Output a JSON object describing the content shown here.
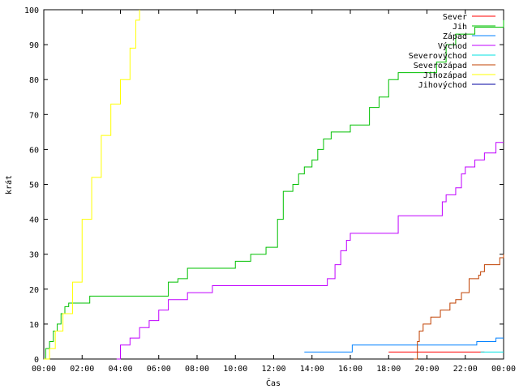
{
  "chart_data": {
    "type": "line",
    "xlabel": "Čas",
    "ylabel": "krát",
    "xlim": [
      0,
      24
    ],
    "ylim": [
      0,
      100
    ],
    "xticks": [
      0,
      2,
      4,
      6,
      8,
      10,
      12,
      14,
      16,
      18,
      20,
      22,
      24
    ],
    "xtick_labels": [
      "00:00",
      "02:00",
      "04:00",
      "06:00",
      "08:00",
      "10:00",
      "12:00",
      "14:00",
      "16:00",
      "18:00",
      "20:00",
      "22:00",
      "00:00"
    ],
    "yticks": [
      0,
      10,
      20,
      30,
      40,
      50,
      60,
      70,
      80,
      90,
      100
    ],
    "grid": false,
    "legend_position": "top-right",
    "step": true,
    "series": [
      {
        "name": "Sever",
        "color": "#ff0000",
        "x": [
          18.0,
          23.0
        ],
        "y": [
          2,
          2
        ]
      },
      {
        "name": "Jih",
        "color": "#00c000",
        "x": [
          0.0,
          0.1,
          0.3,
          0.5,
          0.7,
          0.9,
          1.1,
          1.3,
          2.4,
          6.5,
          7.0,
          7.5,
          10.0,
          10.8,
          11.6,
          12.2,
          12.5,
          13.0,
          13.3,
          13.6,
          14.0,
          14.3,
          14.6,
          15.0,
          16.0,
          17.0,
          17.5,
          18.0,
          18.5,
          20.5,
          21.0,
          21.5,
          22.5,
          23.6,
          24.0
        ],
        "y": [
          0,
          3,
          5,
          8,
          10,
          13,
          15,
          16,
          18,
          22,
          23,
          26,
          28,
          30,
          32,
          40,
          48,
          50,
          53,
          55,
          57,
          60,
          63,
          65,
          67,
          72,
          75,
          80,
          82,
          85,
          90,
          93,
          95,
          95,
          97
        ]
      },
      {
        "name": "Západ",
        "color": "#0080ff",
        "x": [
          13.6,
          16.1,
          22.6,
          23.6,
          24.0
        ],
        "y": [
          2,
          4,
          5,
          6,
          6
        ]
      },
      {
        "name": "Východ",
        "color": "#c000ff",
        "x": [
          3.8,
          4.0,
          4.5,
          5.0,
          5.5,
          6.0,
          6.5,
          7.5,
          8.8,
          14.8,
          15.2,
          15.5,
          15.8,
          16.0,
          16.3,
          18.5,
          20.0,
          20.8,
          21.0,
          21.5,
          21.8,
          22.0,
          22.5,
          23.0,
          23.6,
          24.0
        ],
        "y": [
          0,
          4,
          6,
          9,
          11,
          14,
          17,
          19,
          21,
          23,
          27,
          31,
          34,
          36,
          36,
          41,
          41,
          45,
          47,
          49,
          53,
          55,
          57,
          59,
          62,
          62
        ]
      },
      {
        "name": "Severovýchod",
        "color": "#00e0e0",
        "x": [
          22.8,
          24.0
        ],
        "y": [
          2,
          2
        ]
      },
      {
        "name": "Severozápad",
        "color": "#c04000",
        "x": [
          19.3,
          19.5,
          19.6,
          19.8,
          20.2,
          20.7,
          21.2,
          21.5,
          21.8,
          22.2,
          22.7,
          22.8,
          23.0,
          23.8,
          24.0
        ],
        "y": [
          0,
          5,
          8,
          10,
          12,
          14,
          16,
          17,
          19,
          23,
          24,
          25,
          27,
          29,
          30
        ]
      },
      {
        "name": "Jihozápad",
        "color": "#ffff00",
        "x": [
          0.0,
          0.3,
          0.6,
          1.0,
          1.5,
          2.0,
          2.5,
          3.0,
          3.5,
          4.0,
          4.5,
          4.8,
          5.0
        ],
        "y": [
          0,
          3,
          8,
          13,
          22,
          40,
          52,
          64,
          73,
          80,
          89,
          97,
          100
        ]
      },
      {
        "name": "Jihovýchod",
        "color": "#0000a0",
        "x": [],
        "y": []
      }
    ]
  }
}
